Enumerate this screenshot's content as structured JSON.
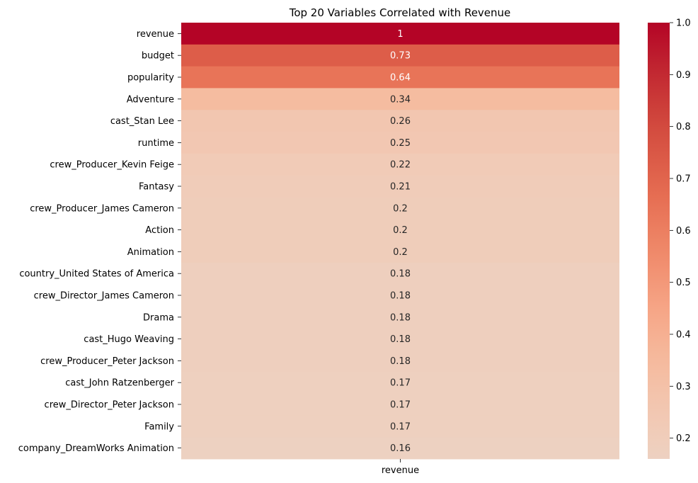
{
  "chart_data": {
    "type": "heatmap",
    "title": "Top 20 Variables Correlated with Revenue",
    "columns": [
      "revenue"
    ],
    "rows": [
      {
        "label": "revenue",
        "value": 1,
        "display": "1"
      },
      {
        "label": "budget",
        "value": 0.73,
        "display": "0.73"
      },
      {
        "label": "popularity",
        "value": 0.64,
        "display": "0.64"
      },
      {
        "label": "Adventure",
        "value": 0.34,
        "display": "0.34"
      },
      {
        "label": "cast_Stan Lee",
        "value": 0.26,
        "display": "0.26"
      },
      {
        "label": "runtime",
        "value": 0.25,
        "display": "0.25"
      },
      {
        "label": "crew_Producer_Kevin Feige",
        "value": 0.22,
        "display": "0.22"
      },
      {
        "label": "Fantasy",
        "value": 0.21,
        "display": "0.21"
      },
      {
        "label": "crew_Producer_James Cameron",
        "value": 0.2,
        "display": "0.2"
      },
      {
        "label": "Action",
        "value": 0.2,
        "display": "0.2"
      },
      {
        "label": "Animation",
        "value": 0.2,
        "display": "0.2"
      },
      {
        "label": "country_United States of America",
        "value": 0.18,
        "display": "0.18"
      },
      {
        "label": "crew_Director_James Cameron",
        "value": 0.18,
        "display": "0.18"
      },
      {
        "label": "Drama",
        "value": 0.18,
        "display": "0.18"
      },
      {
        "label": "cast_Hugo Weaving",
        "value": 0.18,
        "display": "0.18"
      },
      {
        "label": "crew_Producer_Peter Jackson",
        "value": 0.18,
        "display": "0.18"
      },
      {
        "label": "cast_John Ratzenberger",
        "value": 0.17,
        "display": "0.17"
      },
      {
        "label": "crew_Director_Peter Jackson",
        "value": 0.17,
        "display": "0.17"
      },
      {
        "label": "Family",
        "value": 0.17,
        "display": "0.17"
      },
      {
        "label": "company_DreamWorks Animation",
        "value": 0.16,
        "display": "0.16"
      }
    ],
    "colormap": "coolwarm",
    "colorbar": {
      "range": [
        0.16,
        1.0
      ],
      "ticks": [
        0.2,
        0.3,
        0.4,
        0.5,
        0.6,
        0.7,
        0.8,
        0.9,
        1.0
      ],
      "tick_labels": [
        "0.2",
        "0.3",
        "0.4",
        "0.5",
        "0.6",
        "0.7",
        "0.8",
        "0.9",
        "1.0"
      ],
      "placement": "right"
    }
  }
}
